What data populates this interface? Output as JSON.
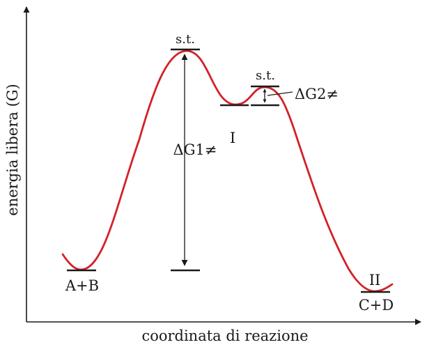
{
  "axes": {
    "y_label": "energia libera (G)",
    "x_label": "coordinata di reazione"
  },
  "labels": {
    "reactants": "A+B",
    "transition_state_1": "s.t.",
    "transition_state_2": "s.t.",
    "intermediate": "I",
    "product_region": "II",
    "products": "C+D",
    "delta_g1": "ΔG1≠",
    "delta_g2": "ΔG2≠"
  },
  "colors": {
    "curve": "#d42027",
    "lines": "#1a1a1a"
  }
}
